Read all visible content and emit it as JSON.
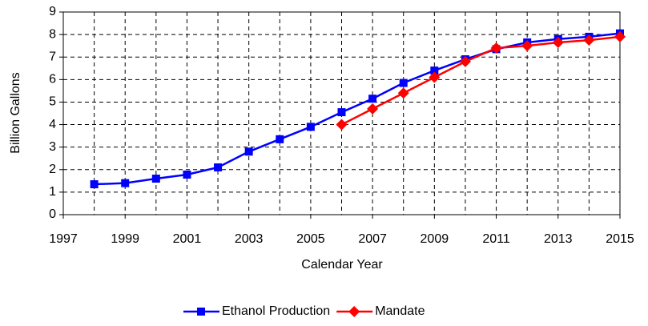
{
  "chart_data": {
    "type": "line",
    "xlabel": "Calendar Year",
    "ylabel": "Billion Gallons",
    "x": [
      1998,
      1999,
      2000,
      2001,
      2002,
      2003,
      2004,
      2005,
      2006,
      2007,
      2008,
      2009,
      2010,
      2011,
      2012,
      2013,
      2014,
      2015
    ],
    "series": [
      {
        "name": "Ethanol Production",
        "color": "#0000ff",
        "marker": "square",
        "values": [
          1.35,
          1.4,
          1.6,
          1.78,
          2.1,
          2.8,
          3.35,
          3.9,
          4.55,
          5.15,
          5.85,
          6.4,
          6.9,
          7.35,
          7.65,
          7.8,
          7.9,
          8.05
        ]
      },
      {
        "name": "Mandate",
        "color": "#ff0000",
        "marker": "diamond",
        "values": [
          null,
          null,
          null,
          null,
          null,
          null,
          null,
          null,
          4.0,
          4.7,
          5.4,
          6.1,
          6.8,
          7.4,
          7.5,
          7.65,
          7.75,
          7.9
        ]
      }
    ],
    "xlim": [
      1997,
      2015
    ],
    "xticks": [
      1997,
      1999,
      2001,
      2003,
      2005,
      2007,
      2009,
      2011,
      2013,
      2015
    ],
    "ylim": [
      0,
      9
    ],
    "yticks": [
      0,
      1,
      2,
      3,
      4,
      5,
      6,
      7,
      8,
      9
    ],
    "grid": true,
    "legend": "bottom"
  }
}
